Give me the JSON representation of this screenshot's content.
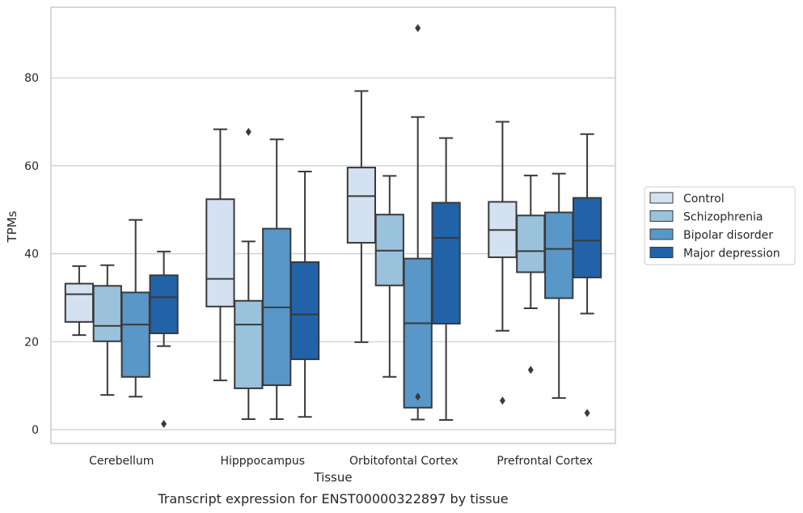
{
  "chart_data": {
    "type": "box",
    "title": "",
    "caption": "Transcript expression for ENST00000322897 by tissue",
    "xlabel": "Tissue",
    "ylabel": "TPMs",
    "ylim": [
      -3,
      97
    ],
    "yticks": [
      0,
      20,
      40,
      60,
      80
    ],
    "grid": "horizontal",
    "legend_position": "right",
    "categories": [
      "Cerebellum",
      "Hipppocampus",
      "Orbitofontal Cortex",
      "Prefrontal Cortex"
    ],
    "series": [
      {
        "name": "Control",
        "color": "#d3e1f1",
        "boxes": [
          {
            "whislo": 21.5,
            "q1": 24.5,
            "med": 30.8,
            "q3": 33.2,
            "whishi": 37.2,
            "fliers": []
          },
          {
            "whislo": 11.2,
            "q1": 28.0,
            "med": 34.3,
            "q3": 52.4,
            "whishi": 68.3,
            "fliers": []
          },
          {
            "whislo": 19.9,
            "q1": 42.5,
            "med": 53.1,
            "q3": 59.6,
            "whishi": 77.0,
            "fliers": []
          },
          {
            "whislo": 22.5,
            "q1": 39.2,
            "med": 45.4,
            "q3": 51.8,
            "whishi": 70.0,
            "fliers": [
              6.6
            ]
          }
        ]
      },
      {
        "name": "Schizophrenia",
        "color": "#9ac2dd",
        "boxes": [
          {
            "whislo": 7.9,
            "q1": 20.1,
            "med": 23.6,
            "q3": 32.7,
            "whishi": 37.4,
            "fliers": []
          },
          {
            "whislo": 2.4,
            "q1": 9.4,
            "med": 23.9,
            "q3": 29.3,
            "whishi": 42.8,
            "fliers": [
              67.7
            ]
          },
          {
            "whislo": 12.0,
            "q1": 32.8,
            "med": 40.7,
            "q3": 48.9,
            "whishi": 57.7,
            "fliers": []
          },
          {
            "whislo": 27.6,
            "q1": 35.8,
            "med": 40.6,
            "q3": 48.7,
            "whishi": 57.8,
            "fliers": [
              13.6
            ]
          }
        ]
      },
      {
        "name": "Bipolar disorder",
        "color": "#5897c8",
        "boxes": [
          {
            "whislo": 7.5,
            "q1": 12.0,
            "med": 23.9,
            "q3": 31.2,
            "whishi": 47.7,
            "fliers": []
          },
          {
            "whislo": 2.4,
            "q1": 10.1,
            "med": 27.8,
            "q3": 45.7,
            "whishi": 66.0,
            "fliers": []
          },
          {
            "whislo": 2.3,
            "q1": 5.0,
            "med": 24.2,
            "q3": 38.9,
            "whishi": 71.1,
            "fliers": [
              7.5,
              91.3
            ]
          },
          {
            "whislo": 7.2,
            "q1": 29.9,
            "med": 41.1,
            "q3": 49.4,
            "whishi": 58.2,
            "fliers": []
          }
        ]
      },
      {
        "name": "Major depression",
        "color": "#2262a9",
        "boxes": [
          {
            "whislo": 19.0,
            "q1": 21.9,
            "med": 30.1,
            "q3": 35.1,
            "whishi": 40.5,
            "fliers": [
              1.3
            ]
          },
          {
            "whislo": 2.9,
            "q1": 16.0,
            "med": 26.2,
            "q3": 38.1,
            "whishi": 58.7,
            "fliers": []
          },
          {
            "whislo": 2.2,
            "q1": 24.1,
            "med": 43.6,
            "q3": 51.6,
            "whishi": 66.3,
            "fliers": []
          },
          {
            "whislo": 26.4,
            "q1": 34.6,
            "med": 43.0,
            "q3": 52.7,
            "whishi": 67.2,
            "fliers": [
              3.8
            ]
          }
        ]
      }
    ]
  }
}
